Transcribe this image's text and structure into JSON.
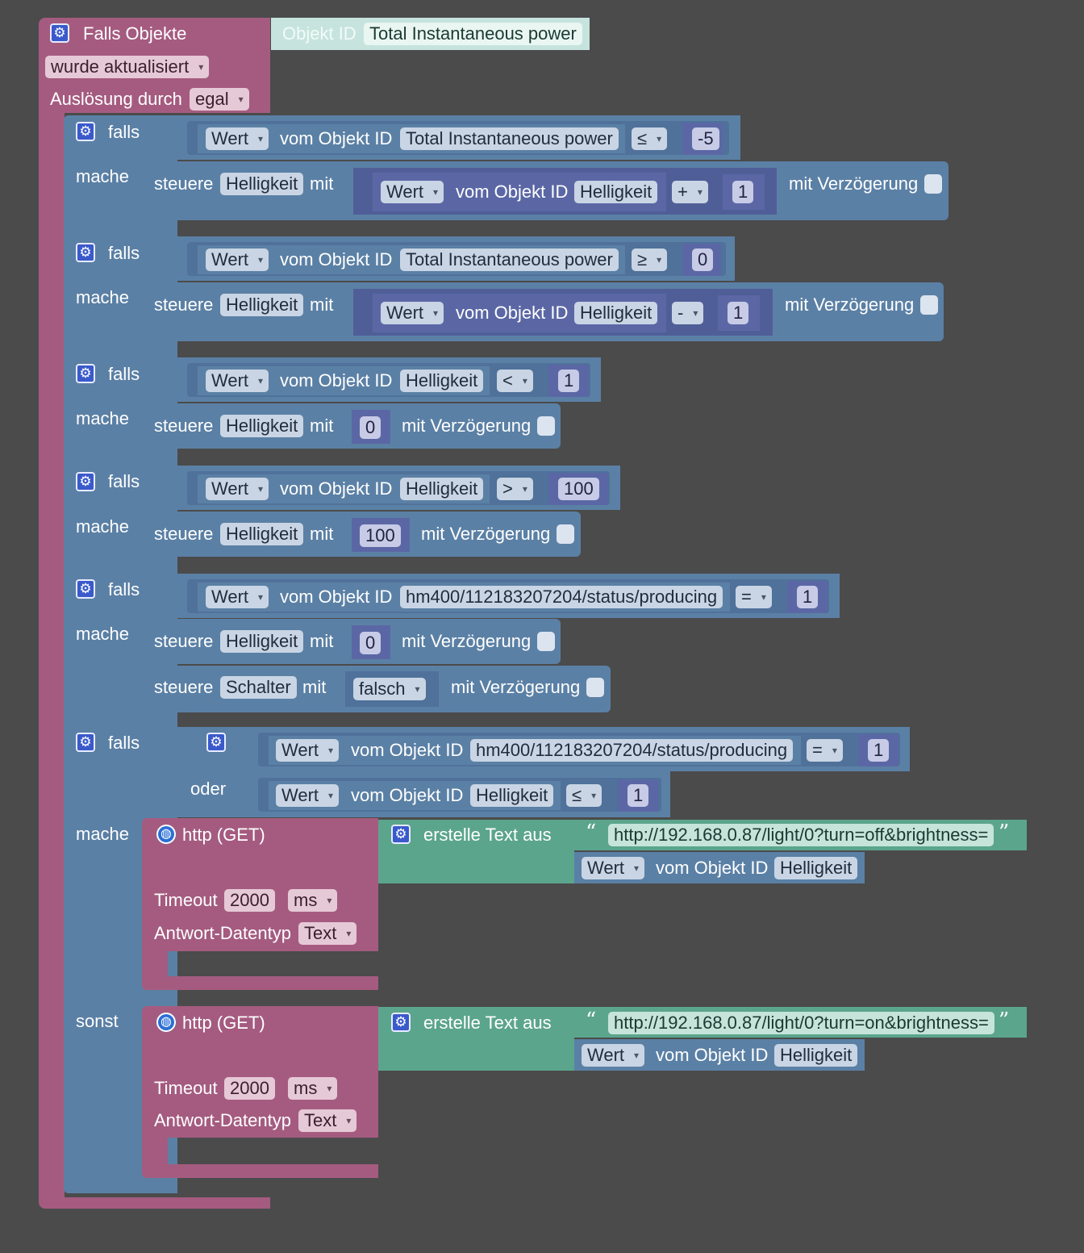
{
  "colors": {
    "background": "#4b4b4b",
    "event_block": "#a55b80",
    "logic_block": "#5b80a5",
    "math_block": "#5b67a5",
    "text_block": "#5ba58c",
    "http_block": "#a55b80"
  },
  "trigger": {
    "title": "Falls Objekte",
    "object_id_label": "Objekt ID",
    "object_id": "Total Instantaneous power",
    "event": "wurde aktualisiert",
    "trigger_by_label": "Auslösung durch",
    "trigger_by": "egal"
  },
  "labels": {
    "falls": "falls",
    "mache": "mache",
    "sonst": "sonst",
    "oder": "oder",
    "steuere": "steuere",
    "mit": "mit",
    "mit_verzoegerung": "mit Verzögerung",
    "vom_objekt_id": "vom Objekt ID",
    "wert": "Wert",
    "http_get": "http (GET)",
    "timeout": "Timeout",
    "antwort_datentyp": "Antwort-Datentyp",
    "erstelle_text_aus": "erstelle Text aus"
  },
  "if_blocks": [
    {
      "cond_object": "Total Instantaneous power",
      "operator": "≤",
      "compare_value": "-5",
      "action_target": "Helligkeit",
      "math_object": "Helligkeit",
      "math_op": "+",
      "math_value": "1"
    },
    {
      "cond_object": "Total Instantaneous power",
      "operator": "≥",
      "compare_value": "0",
      "action_target": "Helligkeit",
      "math_object": "Helligkeit",
      "math_op": "-",
      "math_value": "1"
    },
    {
      "cond_object": "Helligkeit",
      "operator": "<",
      "compare_value": "1",
      "action_target": "Helligkeit",
      "action_value": "0"
    },
    {
      "cond_object": "Helligkeit",
      "operator": ">",
      "compare_value": "100",
      "action_target": "Helligkeit",
      "action_value": "100"
    },
    {
      "cond_object": "hm400/112183207204/status/producing",
      "operator": "=",
      "compare_value": "1",
      "action_target": "Helligkeit",
      "action_value": "0",
      "action2_target": "Schalter",
      "action2_value": "falsch"
    },
    {
      "cond1_object": "hm400/112183207204/status/producing",
      "cond1_operator": "=",
      "cond1_value": "1",
      "cond2_object": "Helligkeit",
      "cond2_operator": "≤",
      "cond2_value": "1"
    }
  ],
  "http_then": {
    "url": "http://192.168.0.87/light/0?turn=off&brightness=",
    "object": "Helligkeit",
    "timeout": "2000",
    "unit": "ms",
    "datatype": "Text"
  },
  "http_else": {
    "url": "http://192.168.0.87/light/0?turn=on&brightness=",
    "object": "Helligkeit",
    "timeout": "2000",
    "unit": "ms",
    "datatype": "Text"
  }
}
